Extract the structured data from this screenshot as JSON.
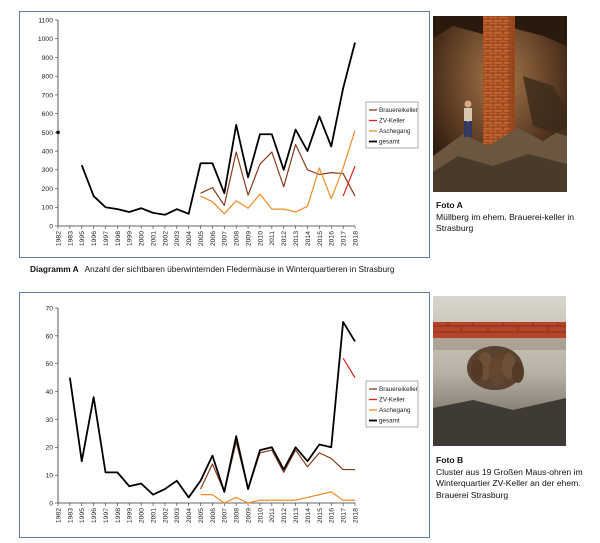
{
  "diagram_a": {
    "label": "Diagramm A",
    "caption": "Anzahl der sichtbaren überwinternden Fledermäuse in Winterquartieren in Strasburg"
  },
  "photo_a": {
    "title": "Foto A",
    "caption": "Müllberg im ehem. Brauerei-keller in Strasburg"
  },
  "photo_b": {
    "title": "Foto B",
    "caption": "Cluster aus 19 Großen Maus-ohren im Winterquartier ZV-Keller an der ehem. Brauerei Strasburg"
  },
  "colors": {
    "brauereikeller": "#8b3a1a",
    "zv_keller": "#e2231a",
    "aschegang": "#f28c28",
    "gesamt": "#000000",
    "frame": "#5b7fb4"
  },
  "chart_data": [
    {
      "type": "line",
      "x": [
        "1982",
        "1983",
        "1995",
        "1996",
        "1997",
        "1998",
        "1999",
        "2000",
        "2001",
        "2002",
        "2003",
        "2004",
        "2005",
        "2006",
        "2007",
        "2008",
        "2009",
        "2010",
        "2011",
        "2012",
        "2013",
        "2014",
        "2015",
        "2016",
        "2017",
        "2018"
      ],
      "ylim": [
        0,
        1100
      ],
      "yticks": [
        0,
        100,
        200,
        300,
        400,
        500,
        600,
        700,
        800,
        900,
        1000,
        1100
      ],
      "grid": false,
      "legend": "right",
      "series": [
        {
          "name": "Brauereikeller",
          "color": "#8b3a1a",
          "values": [
            null,
            null,
            null,
            null,
            null,
            null,
            null,
            null,
            null,
            null,
            null,
            null,
            175,
            205,
            110,
            395,
            165,
            330,
            395,
            210,
            435,
            300,
            275,
            285,
            280,
            160
          ]
        },
        {
          "name": "ZV-Keller",
          "color": "#e2231a",
          "values": [
            null,
            null,
            null,
            null,
            null,
            null,
            null,
            null,
            null,
            null,
            null,
            null,
            null,
            null,
            null,
            null,
            null,
            null,
            null,
            null,
            null,
            null,
            null,
            null,
            160,
            320
          ]
        },
        {
          "name": "Aschegang",
          "color": "#f28c28",
          "values": [
            null,
            null,
            null,
            null,
            null,
            null,
            null,
            null,
            null,
            null,
            null,
            null,
            160,
            130,
            65,
            135,
            95,
            170,
            90,
            90,
            75,
            105,
            310,
            145,
            310,
            510
          ]
        },
        {
          "name": "gesamt",
          "color": "#000000",
          "values": [
            500,
            null,
            325,
            160,
            100,
            90,
            75,
            95,
            70,
            60,
            90,
            65,
            335,
            335,
            175,
            540,
            260,
            490,
            490,
            300,
            515,
            400,
            585,
            425,
            735,
            980
          ]
        }
      ]
    },
    {
      "type": "line",
      "x": [
        "1982",
        "1983",
        "1995",
        "1996",
        "1997",
        "1998",
        "1999",
        "2000",
        "2001",
        "2002",
        "2003",
        "2004",
        "2005",
        "2006",
        "2007",
        "2008",
        "2009",
        "2010",
        "2011",
        "2012",
        "2013",
        "2014",
        "2015",
        "2016",
        "2017",
        "2018"
      ],
      "ylim": [
        0,
        70
      ],
      "yticks": [
        0,
        10,
        20,
        30,
        40,
        50,
        60,
        70
      ],
      "grid": false,
      "legend": "right",
      "series": [
        {
          "name": "Brauereikeller",
          "color": "#8b3a1a",
          "values": [
            null,
            null,
            null,
            null,
            null,
            null,
            null,
            null,
            null,
            null,
            null,
            null,
            5,
            14,
            4,
            22,
            5,
            18,
            19,
            11,
            19,
            13,
            18,
            16,
            12,
            12
          ]
        },
        {
          "name": "ZV-Keller",
          "color": "#e2231a",
          "values": [
            null,
            null,
            null,
            null,
            null,
            null,
            null,
            null,
            null,
            null,
            null,
            null,
            null,
            null,
            null,
            null,
            null,
            null,
            null,
            null,
            null,
            null,
            null,
            null,
            52,
            45
          ]
        },
        {
          "name": "Aschegang",
          "color": "#f28c28",
          "values": [
            null,
            null,
            null,
            null,
            null,
            null,
            null,
            null,
            null,
            null,
            null,
            null,
            3,
            3,
            0,
            2,
            0,
            1,
            1,
            1,
            1,
            2,
            3,
            4,
            1,
            1
          ]
        },
        {
          "name": "gesamt",
          "color": "#000000",
          "values": [
            null,
            45,
            15,
            38,
            11,
            11,
            6,
            7,
            3,
            5,
            8,
            2,
            8,
            17,
            4,
            24,
            5,
            19,
            20,
            12,
            20,
            15,
            21,
            20,
            65,
            58
          ]
        }
      ]
    }
  ]
}
